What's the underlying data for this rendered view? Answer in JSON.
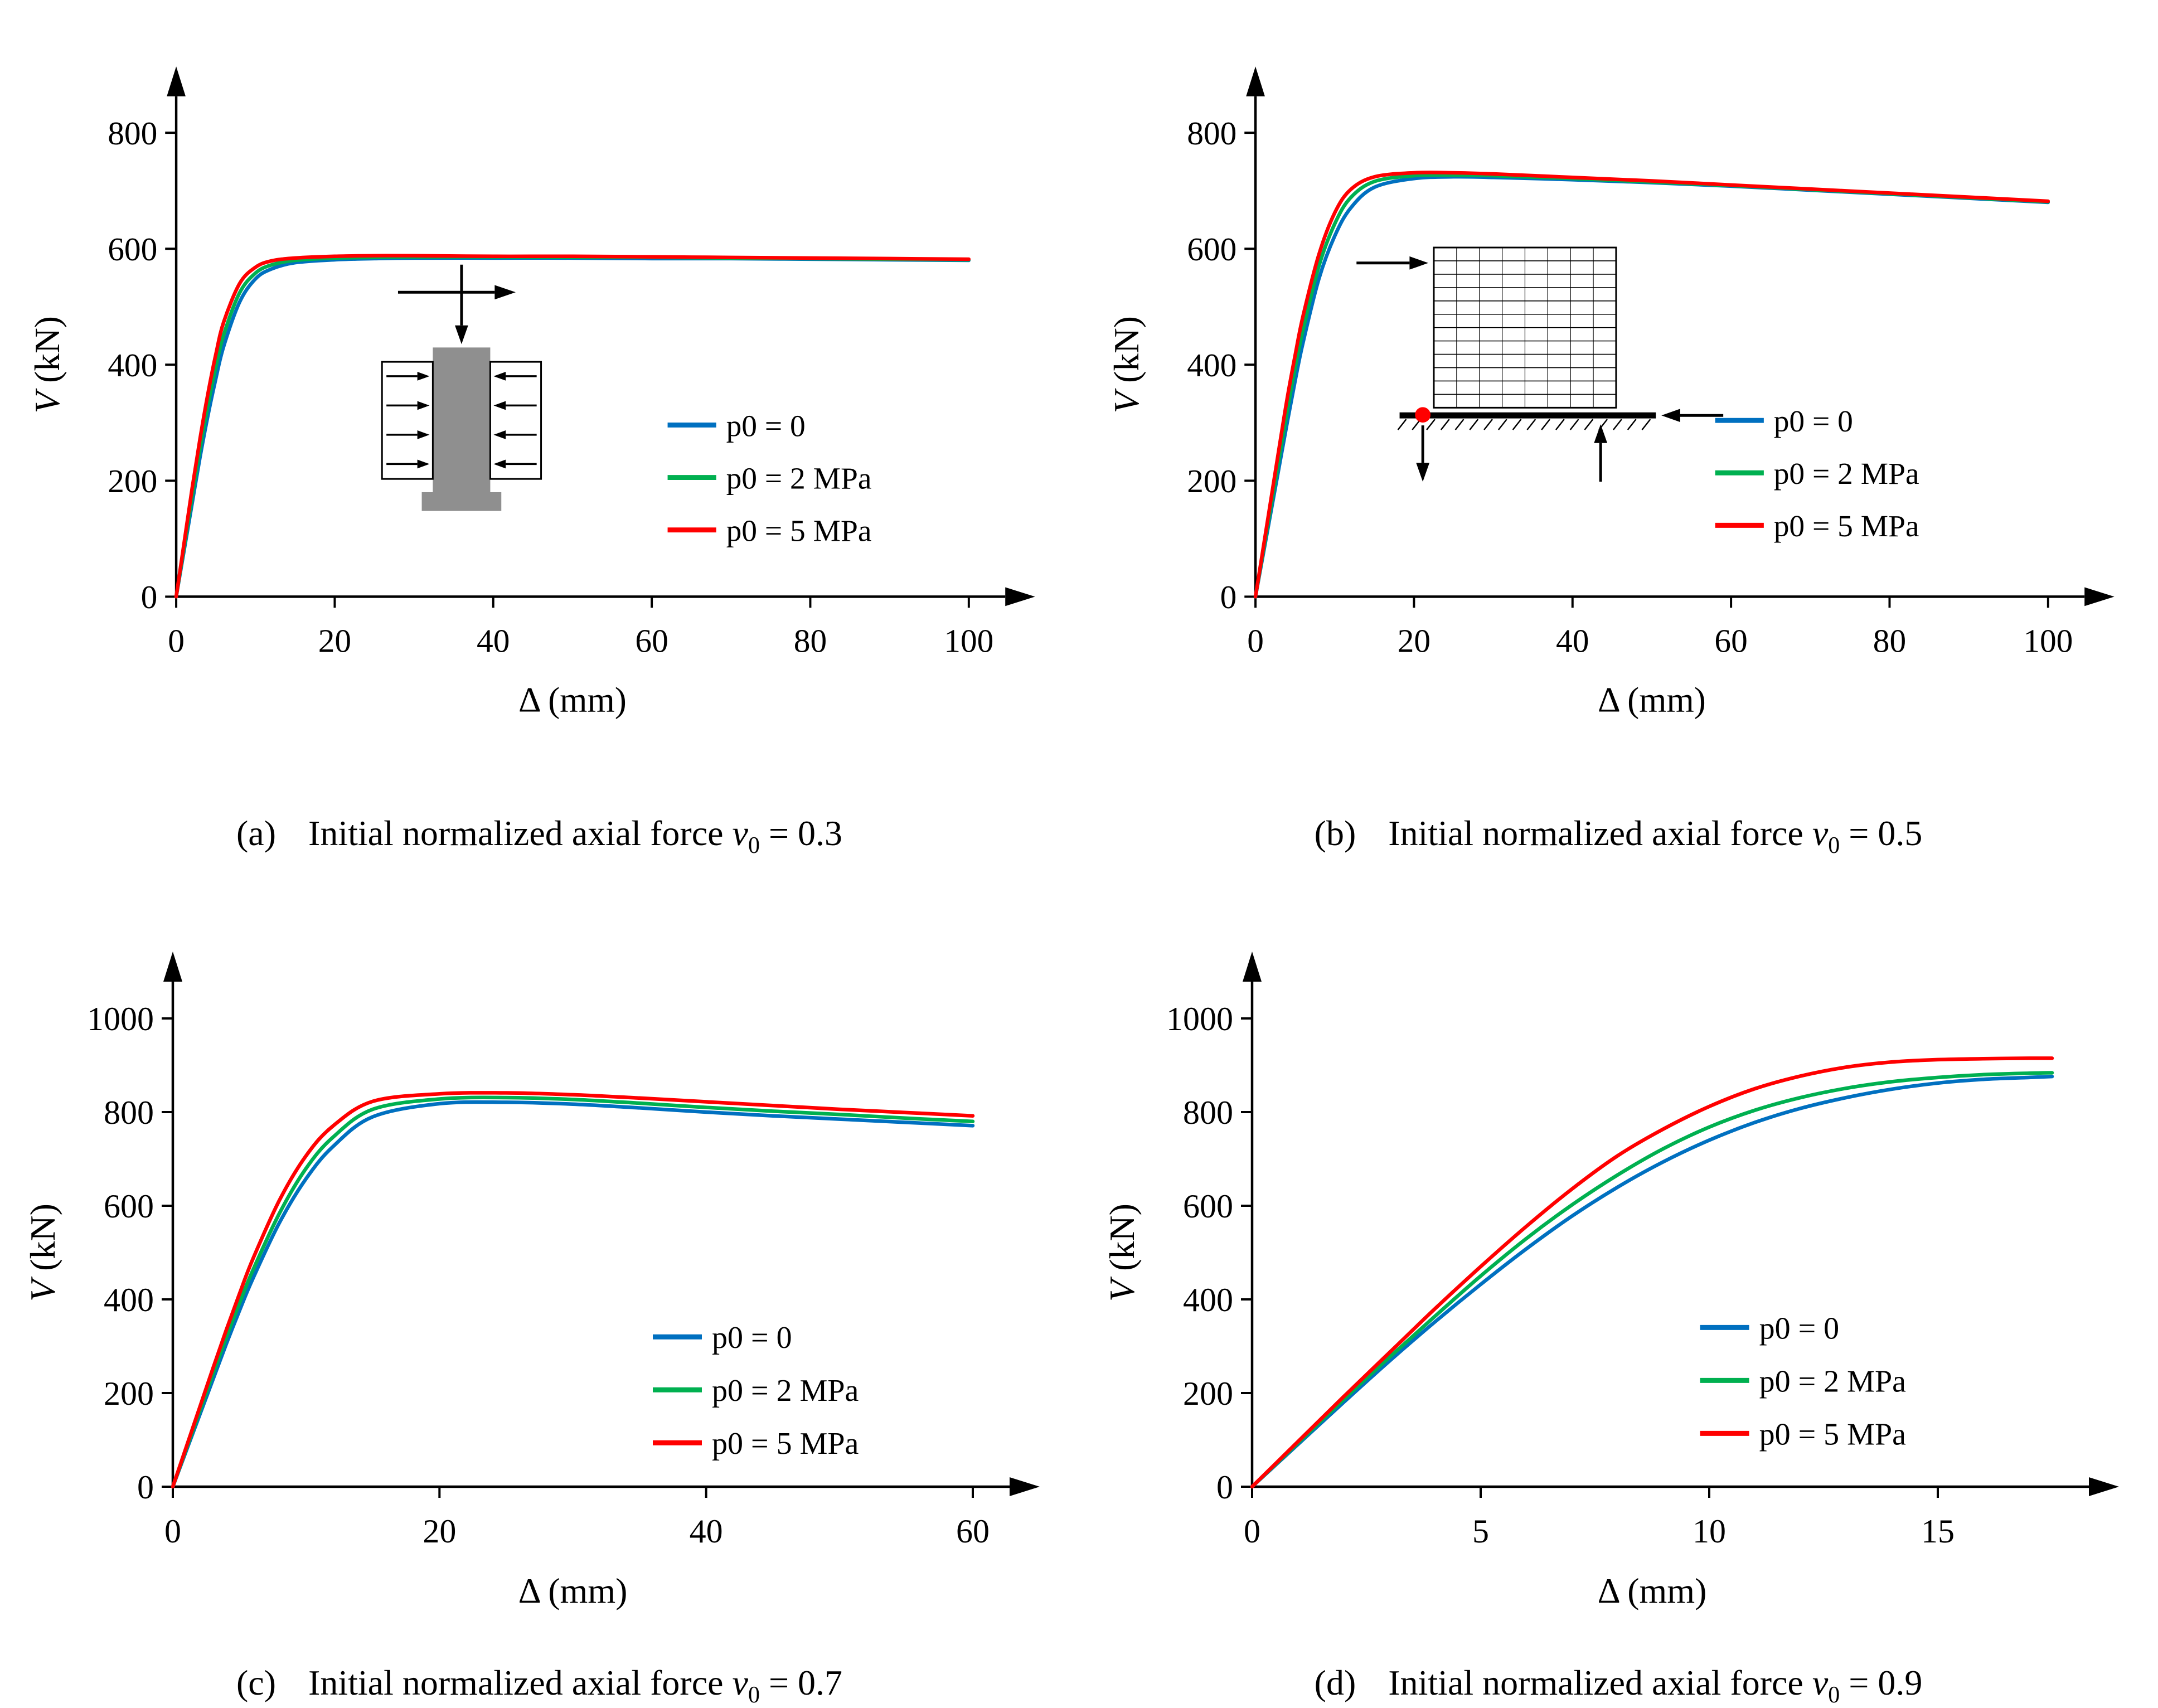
{
  "page": {
    "background": "#ffffff"
  },
  "colors": {
    "blue": "#0070C0",
    "green": "#00B050",
    "red": "#FF0000",
    "axis": "#000000"
  },
  "panels": [
    {
      "caption": {
        "prefix": "(a)",
        "text": "Initial normalized axial force ",
        "symbol": "ν",
        "subscript": "0",
        "suffix": " = 0.3"
      }
    },
    {
      "caption": {
        "prefix": "(b)",
        "text": "Initial normalized axial force ",
        "symbol": "ν",
        "subscript": "0",
        "suffix": " = 0.5"
      }
    },
    {
      "caption": {
        "prefix": "(c)",
        "text": "Initial normalized axial force ",
        "symbol": "ν",
        "subscript": "0",
        "suffix": " = 0.7"
      }
    },
    {
      "caption": {
        "prefix": "(d)",
        "text": "Initial normalized axial force ",
        "symbol": "ν",
        "subscript": "0",
        "suffix": " = 0.9"
      }
    }
  ],
  "chart_data": [
    {
      "type": "line",
      "title": "(a) Initial normalized axial force ν0 = 0.3",
      "xlabel": "Δ (mm)",
      "ylabel_italic": "V",
      "ylabel_rest": " (kN)",
      "xlim": [
        0,
        100
      ],
      "ylim": [
        0,
        800
      ],
      "xticks": [
        0,
        20,
        40,
        60,
        80,
        100
      ],
      "yticks": [
        0,
        200,
        400,
        600,
        800
      ],
      "grid": false,
      "legend_position": {
        "fx": 0.62,
        "fy": 0.63
      },
      "inset": "column-schematic",
      "inset_center": {
        "fx": 0.36,
        "fy": 0.38
      },
      "x": [
        0,
        1,
        2,
        3,
        4,
        5,
        6,
        8,
        10,
        12,
        15,
        20,
        25,
        30,
        40,
        50,
        60,
        70,
        80,
        90,
        100
      ],
      "series": [
        {
          "name": "p0 = 0",
          "color": "blue",
          "values": [
            0,
            80,
            160,
            240,
            312,
            376,
            432,
            508,
            548,
            565,
            576,
            581,
            583,
            584,
            584,
            584,
            583,
            583,
            582,
            581,
            580
          ]
        },
        {
          "name": "p0 = 2 MPa",
          "color": "green",
          "values": [
            0,
            86,
            172,
            255,
            330,
            396,
            452,
            524,
            558,
            572,
            580,
            584,
            585,
            586,
            586,
            585,
            585,
            584,
            583,
            582,
            581
          ]
        },
        {
          "name": "p0 = 5 MPa",
          "color": "red",
          "values": [
            0,
            93,
            186,
            272,
            350,
            418,
            474,
            540,
            568,
            579,
            584,
            587,
            588,
            588,
            587,
            587,
            586,
            585,
            584,
            583,
            582
          ]
        }
      ]
    },
    {
      "type": "line",
      "title": "(b) Initial normalized axial force ν0 = 0.5",
      "xlabel": "Δ (mm)",
      "ylabel_italic": "V",
      "ylabel_rest": " (kN)",
      "xlim": [
        0,
        100
      ],
      "ylim": [
        0,
        800
      ],
      "xticks": [
        0,
        20,
        40,
        60,
        80,
        100
      ],
      "yticks": [
        0,
        200,
        400,
        600,
        800
      ],
      "grid": false,
      "legend_position": {
        "fx": 0.58,
        "fy": 0.62
      },
      "inset": "wall-schematic",
      "inset_center": {
        "fx": 0.34,
        "fy": 0.58
      },
      "x": [
        0,
        1,
        2,
        3,
        4,
        5,
        6,
        8,
        10,
        12,
        15,
        20,
        25,
        30,
        40,
        50,
        60,
        70,
        80,
        90,
        100
      ],
      "series": [
        {
          "name": "p0 = 0",
          "color": "blue",
          "values": [
            0,
            75,
            150,
            225,
            300,
            372,
            438,
            548,
            622,
            670,
            706,
            721,
            724,
            723,
            719,
            714,
            708,
            701,
            694,
            687,
            680
          ]
        },
        {
          "name": "p0 = 2 MPa",
          "color": "green",
          "values": [
            0,
            80,
            160,
            240,
            320,
            394,
            460,
            570,
            643,
            688,
            716,
            726,
            727,
            726,
            721,
            715,
            709,
            702,
            695,
            688,
            681
          ]
        },
        {
          "name": "p0 = 5 MPa",
          "color": "red",
          "values": [
            0,
            86,
            172,
            258,
            342,
            416,
            484,
            590,
            662,
            702,
            724,
            731,
            731,
            729,
            723,
            717,
            710,
            703,
            696,
            689,
            682
          ]
        }
      ]
    },
    {
      "type": "line",
      "title": "(c) Initial normalized axial force ν0 = 0.7",
      "xlabel": "Δ (mm)",
      "ylabel_italic": "V",
      "ylabel_rest": " (kN)",
      "xlim": [
        0,
        60
      ],
      "ylim": [
        0,
        1000
      ],
      "xticks": [
        0,
        20,
        40,
        60
      ],
      "yticks": [
        0,
        200,
        400,
        600,
        800,
        1000
      ],
      "grid": false,
      "legend_position": {
        "fx": 0.6,
        "fy": 0.68
      },
      "inset": null,
      "x": [
        0,
        1,
        2,
        3,
        4,
        5,
        6,
        8,
        10,
        12,
        15,
        20,
        25,
        30,
        35,
        40,
        45,
        50,
        55,
        60
      ],
      "series": [
        {
          "name": "p0 = 0",
          "color": "blue",
          "values": [
            0,
            76,
            152,
            228,
            304,
            376,
            444,
            564,
            658,
            726,
            790,
            818,
            821,
            817,
            809,
            800,
            792,
            785,
            778,
            771
          ]
        },
        {
          "name": "p0 = 2 MPa",
          "color": "green",
          "values": [
            0,
            80,
            160,
            240,
            318,
            392,
            462,
            584,
            680,
            746,
            806,
            828,
            831,
            827,
            819,
            810,
            802,
            795,
            787,
            780
          ]
        },
        {
          "name": "p0 = 5 MPa",
          "color": "red",
          "values": [
            0,
            84,
            168,
            252,
            334,
            412,
            486,
            612,
            707,
            770,
            823,
            839,
            841,
            837,
            830,
            822,
            814,
            806,
            799,
            792
          ]
        }
      ]
    },
    {
      "type": "line",
      "title": "(d) Initial normalized axial force ν0 = 0.9",
      "xlabel": "Δ (mm)",
      "ylabel_italic": "V",
      "ylabel_rest": " (kN)",
      "xlim": [
        0,
        17.5
      ],
      "ylim": [
        0,
        1000
      ],
      "xticks": [
        0,
        5,
        10,
        15
      ],
      "yticks": [
        0,
        200,
        400,
        600,
        800,
        1000
      ],
      "grid": false,
      "legend_position": {
        "fx": 0.56,
        "fy": 0.66
      },
      "inset": null,
      "x": [
        0,
        1,
        2,
        3,
        4,
        5,
        6,
        7,
        8,
        9,
        10,
        11,
        12,
        13,
        14,
        15,
        16,
        17,
        17.5
      ],
      "series": [
        {
          "name": "p0 = 0",
          "color": "blue",
          "values": [
            0,
            90,
            180,
            268,
            352,
            432,
            508,
            578,
            640,
            694,
            740,
            778,
            808,
            831,
            849,
            862,
            870,
            874,
            876
          ]
        },
        {
          "name": "p0 = 2 MPa",
          "color": "green",
          "values": [
            0,
            93,
            186,
            276,
            364,
            450,
            530,
            602,
            666,
            722,
            768,
            804,
            831,
            851,
            865,
            874,
            880,
            883,
            884
          ]
        },
        {
          "name": "p0 = 5 MPa",
          "color": "red",
          "values": [
            0,
            96,
            192,
            286,
            380,
            470,
            556,
            636,
            707,
            764,
            812,
            850,
            877,
            896,
            907,
            912,
            914,
            915,
            915
          ]
        }
      ]
    }
  ]
}
